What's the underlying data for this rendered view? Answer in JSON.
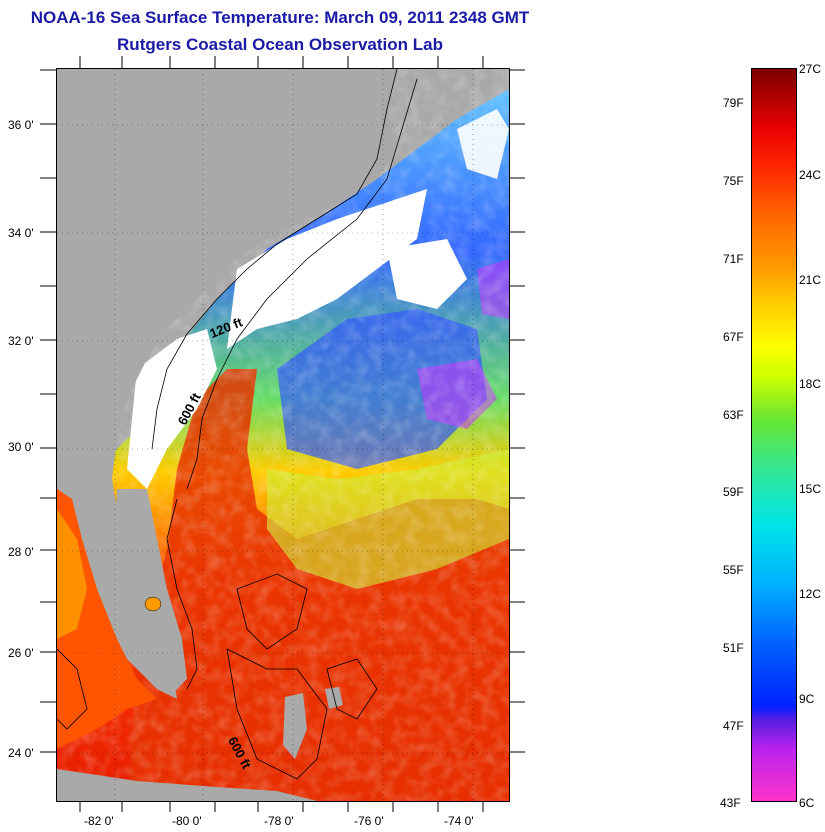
{
  "title": "NOAA-16 Sea Surface Temperature:  March 09, 2011 2348 GMT",
  "subtitle": "Rutgers Coastal Ocean Observation Lab",
  "map": {
    "lat_ticks": [
      "36 0'",
      "34 0'",
      "32 0'",
      "30 0'",
      "28 0'",
      "26 0'",
      "24 0'"
    ],
    "lon_ticks": [
      "-82 0'",
      "-80 0'",
      "-78 0'",
      "-76 0'",
      "-74 0'"
    ],
    "contour_labels": {
      "isobath_120": "120 ft",
      "isobath_600_north": "600 ft",
      "isobath_600_south": "600 ft"
    },
    "colors": {
      "land": "#a9a9a9",
      "cloud": "#ffffff",
      "warm": "#e62200",
      "cool": "#2255ff"
    }
  },
  "colorbar": {
    "fahrenheit_labels": [
      "79F",
      "75F",
      "71F",
      "67F",
      "63F",
      "59F",
      "55F",
      "51F",
      "47F",
      "43F"
    ],
    "celsius_labels": [
      "27C",
      "24C",
      "21C",
      "18C",
      "15C",
      "12C",
      "9C",
      "6C"
    ]
  }
}
